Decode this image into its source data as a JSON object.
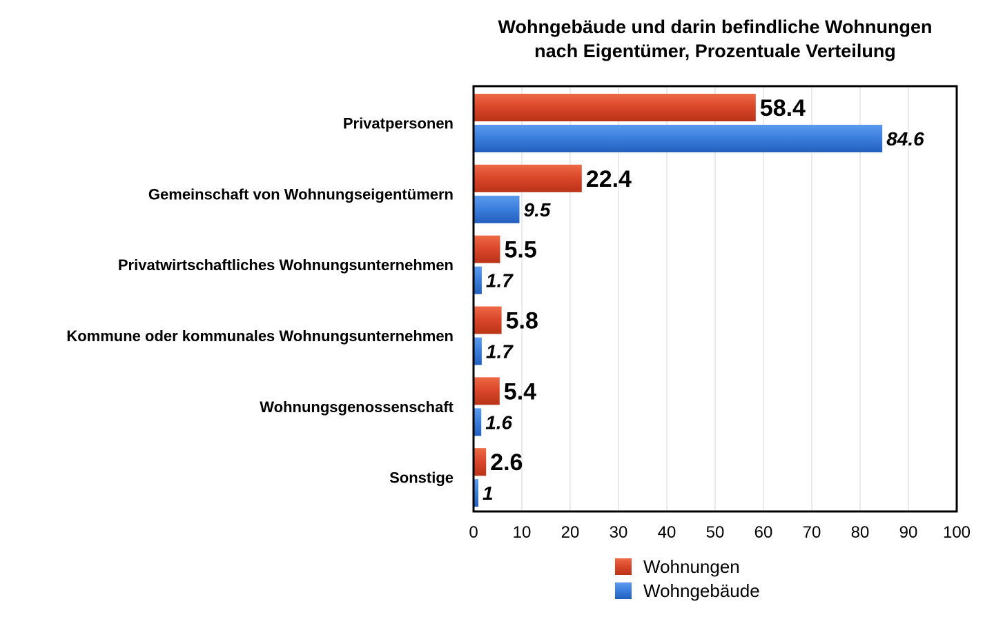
{
  "chart_data": {
    "type": "bar",
    "orientation": "horizontal",
    "title_lines": [
      "Wohngebäude und darin befindliche Wohnungen",
      "nach Eigentümer, Prozentuale Verteilung"
    ],
    "categories": [
      "Privatpersonen",
      "Gemeinschaft von Wohnungseigentümern",
      "Privatwirtschaftliches Wohnungsunternehmen",
      "Kommune oder kommunales Wohnungsunternehmen",
      "Wohnungsgenossenschaft",
      "Sonstige"
    ],
    "series": [
      {
        "name": "Wohnungen",
        "color": "#d9452a",
        "values": [
          58.4,
          22.4,
          5.5,
          5.8,
          5.4,
          2.6
        ],
        "labels": [
          "58.4",
          "22.4",
          "5.5",
          "5.8",
          "5.4",
          "2.6"
        ]
      },
      {
        "name": "Wohngebäude",
        "color": "#3273d4",
        "values": [
          84.6,
          9.5,
          1.7,
          1.7,
          1.6,
          1
        ],
        "labels": [
          "84.6",
          "9.5",
          "1.7",
          "1.7",
          "1.6",
          "1"
        ]
      }
    ],
    "xlim": [
      0,
      100
    ],
    "xticks": [
      "0",
      "10",
      "20",
      "30",
      "40",
      "50",
      "60",
      "70",
      "80",
      "90",
      "100"
    ],
    "grid": true,
    "legend_position": "bottom"
  }
}
